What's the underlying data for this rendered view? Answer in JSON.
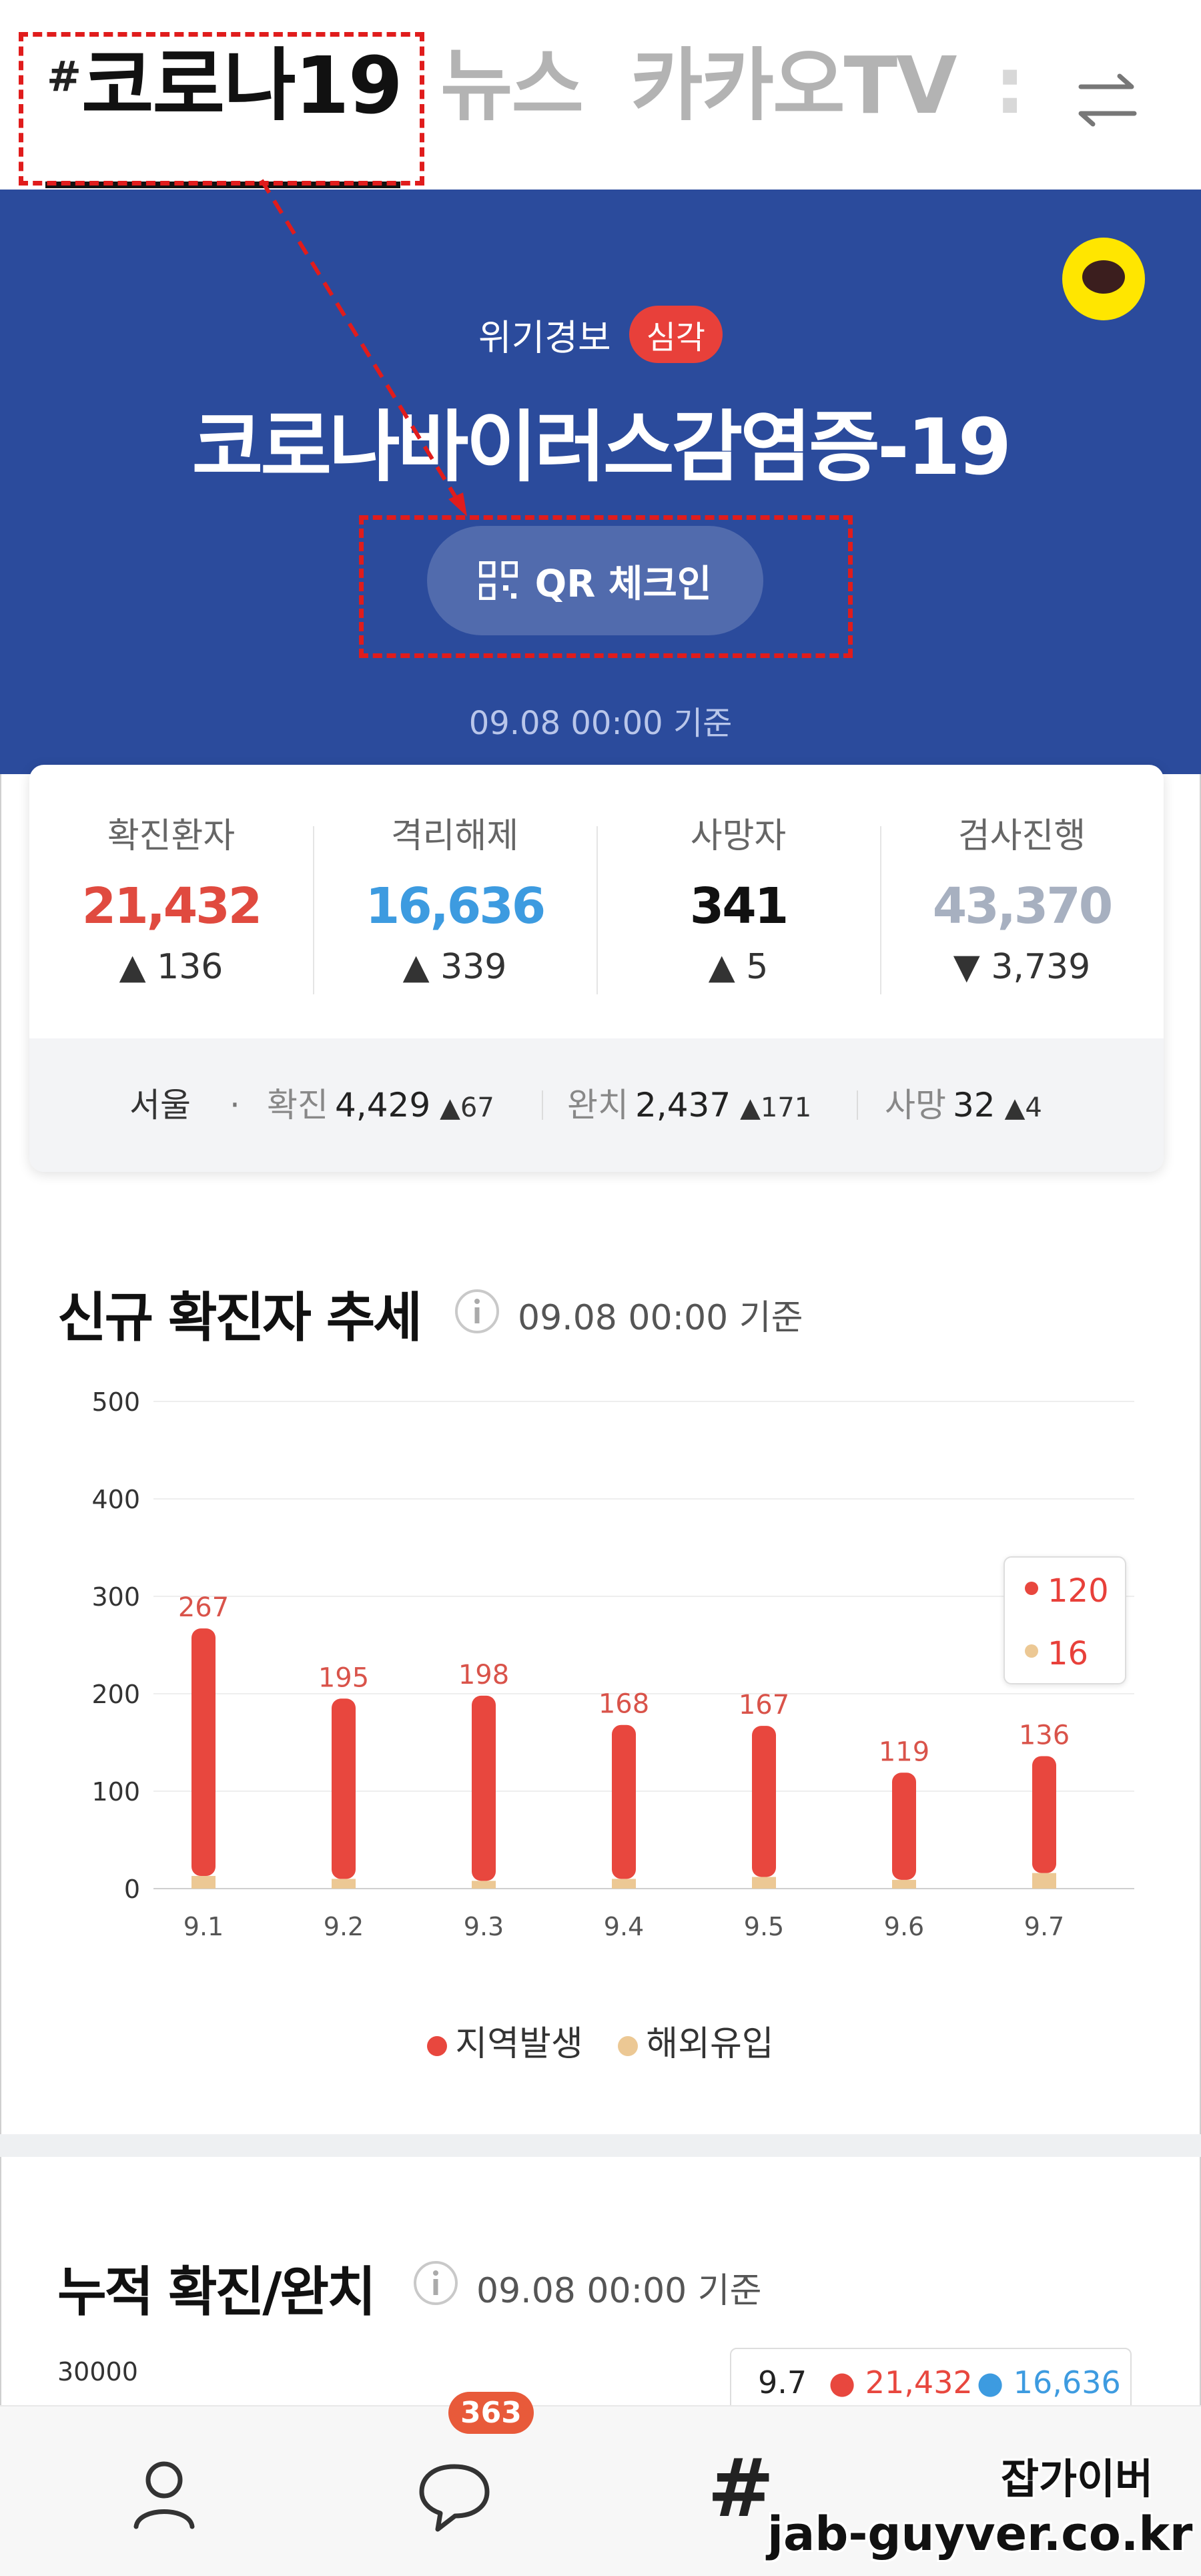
{
  "tabs": {
    "hash": "#",
    "active": "코로나19",
    "news": "뉴스",
    "kakaotv": "카카오TV",
    "more": ":"
  },
  "hero": {
    "alert_label": "위기경보",
    "alert_level": "심각",
    "title": "코로나바이러스감염증-19",
    "qr_button": "QR 체크인",
    "as_of": "09.08 00:00 기준"
  },
  "stats": [
    {
      "label": "확진환자",
      "value": "21,432",
      "delta": "136",
      "dir": "up",
      "color": "#e04a3f"
    },
    {
      "label": "격리해제",
      "value": "16,636",
      "delta": "339",
      "dir": "up",
      "color": "#3d9be0"
    },
    {
      "label": "사망자",
      "value": "341",
      "delta": "5",
      "dir": "up",
      "color": "#111111"
    },
    {
      "label": "검사진행",
      "value": "43,370",
      "delta": "3,739",
      "dir": "down",
      "color": "#a7b0c0"
    }
  ],
  "region": {
    "name": "서울",
    "confirmed_label": "확진",
    "confirmed": "4,429",
    "confirmed_delta": "67",
    "released_label": "완치",
    "released": "2,437",
    "released_delta": "171",
    "deaths_label": "사망",
    "deaths": "32",
    "deaths_delta": "4"
  },
  "new_cases": {
    "title": "신규 확진자 추세",
    "as_of": "09.08 00:00 기준",
    "tooltip_local": "120",
    "tooltip_imported": "16"
  },
  "chart_data": {
    "type": "bar",
    "stacked": true,
    "categories": [
      "9.1",
      "9.2",
      "9.3",
      "9.4",
      "9.5",
      "9.6",
      "9.7"
    ],
    "series": [
      {
        "name": "지역발생",
        "values": [
          254,
          185,
          190,
          158,
          155,
          110,
          120
        ],
        "color": "#e8473e"
      },
      {
        "name": "해외유입",
        "values": [
          13,
          10,
          8,
          10,
          12,
          9,
          16
        ],
        "color": "#ecc894"
      }
    ],
    "totals": [
      267,
      195,
      198,
      168,
      167,
      119,
      136
    ],
    "yticks": [
      0,
      100,
      200,
      300,
      400,
      500
    ],
    "ylim": [
      0,
      500
    ],
    "grid": true,
    "legend_position": "bottom-center"
  },
  "cumulative": {
    "title": "누적 확진/완치",
    "as_of": "09.08 00:00 기준",
    "y_top_tick": "30000",
    "tooltip_date": "9.7",
    "tooltip_confirmed": "21,432",
    "tooltip_released": "16,636"
  },
  "bottom_nav": {
    "badge": "363",
    "hash": "#"
  },
  "watermark": {
    "line1": "잡가이버",
    "line2": "jab-guyver.co.kr"
  },
  "colors": {
    "hero_bg": "#2b4b9c",
    "alert_red": "#e8403a",
    "kakao_yellow": "#ffe600",
    "callout_red": "#e01c1c"
  },
  "icons": {
    "swap": "swap-arrows-icon",
    "qr": "qr-code-icon",
    "info": "info-icon",
    "profile": "person-icon",
    "chat": "chat-bubble-icon",
    "kakao": "kakao-talk-icon"
  }
}
